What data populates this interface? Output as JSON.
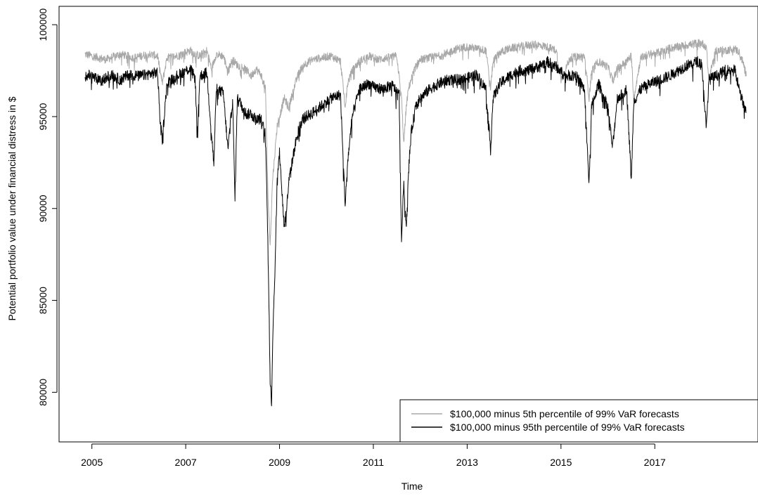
{
  "chart_data": {
    "type": "line",
    "title": "",
    "xlabel": "Time",
    "ylabel": "Potential portfolio value under financial distress in $",
    "xlim": [
      2004.3,
      2019.2
    ],
    "ylim": [
      77300,
      101000
    ],
    "x_ticks": [
      {
        "value": 2005,
        "label": "2005"
      },
      {
        "value": 2007,
        "label": "2007"
      },
      {
        "value": 2009,
        "label": "2009"
      },
      {
        "value": 2011,
        "label": "2011"
      },
      {
        "value": 2013,
        "label": "2013"
      },
      {
        "value": 2015,
        "label": "2015"
      },
      {
        "value": 2017,
        "label": "2017"
      }
    ],
    "y_ticks": [
      {
        "value": 80000,
        "label": "80000"
      },
      {
        "value": 85000,
        "label": "85000"
      },
      {
        "value": 90000,
        "label": "90000"
      },
      {
        "value": 95000,
        "label": "95000"
      },
      {
        "value": 100000,
        "label": "100000"
      }
    ],
    "grid": false,
    "legend_position": "bottom-right",
    "series": [
      {
        "name": "$100,000 minus 5th percentile of 99% VaR forecasts",
        "color": "#a8a8a8",
        "x": [
          2004.85,
          2005.0,
          2005.3,
          2005.6,
          2005.9,
          2006.2,
          2006.4,
          2006.5,
          2006.6,
          2006.8,
          2007.0,
          2007.1,
          2007.2,
          2007.3,
          2007.45,
          2007.55,
          2007.65,
          2007.8,
          2007.9,
          2008.0,
          2008.1,
          2008.2,
          2008.3,
          2008.4,
          2008.5,
          2008.6,
          2008.7,
          2008.75,
          2008.8,
          2008.85,
          2008.9,
          2008.95,
          2009.0,
          2009.1,
          2009.2,
          2009.3,
          2009.4,
          2009.5,
          2009.7,
          2009.9,
          2010.1,
          2010.3,
          2010.4,
          2010.45,
          2010.55,
          2010.7,
          2010.9,
          2011.1,
          2011.3,
          2011.5,
          2011.6,
          2011.65,
          2011.7,
          2011.75,
          2011.8,
          2011.9,
          2012.0,
          2012.2,
          2012.4,
          2012.6,
          2012.8,
          2013.0,
          2013.2,
          2013.4,
          2013.5,
          2013.55,
          2013.7,
          2013.9,
          2014.1,
          2014.3,
          2014.5,
          2014.7,
          2014.9,
          2015.0,
          2015.2,
          2015.5,
          2015.6,
          2015.65,
          2015.8,
          2016.0,
          2016.1,
          2016.2,
          2016.4,
          2016.5,
          2016.55,
          2016.7,
          2016.9,
          2017.1,
          2017.3,
          2017.5,
          2017.7,
          2017.9,
          2018.0,
          2018.1,
          2018.15,
          2018.3,
          2018.5,
          2018.7,
          2018.8,
          2018.9,
          2018.95
        ],
        "values": [
          98400,
          98300,
          98100,
          98400,
          98200,
          98400,
          98300,
          96800,
          98200,
          98300,
          98500,
          98600,
          98400,
          98300,
          98600,
          97600,
          98400,
          98300,
          97500,
          98100,
          97800,
          97700,
          97500,
          97200,
          97600,
          97300,
          96500,
          91000,
          88000,
          91500,
          93000,
          94500,
          95000,
          96000,
          95500,
          96500,
          97300,
          97800,
          98100,
          98200,
          98300,
          98000,
          95500,
          96800,
          97500,
          98000,
          98300,
          98100,
          98200,
          98300,
          96000,
          93500,
          95500,
          96500,
          97000,
          97700,
          98100,
          98200,
          98300,
          98500,
          98700,
          98800,
          98700,
          98600,
          96500,
          98000,
          98500,
          98700,
          98800,
          98900,
          98900,
          98800,
          98600,
          97000,
          98200,
          98300,
          96000,
          97500,
          98000,
          97700,
          97000,
          97600,
          98000,
          98300,
          96000,
          98200,
          98400,
          98500,
          98700,
          98800,
          98900,
          99000,
          99000,
          98800,
          97000,
          98600,
          98600,
          98700,
          98500,
          97800,
          97200
        ]
      },
      {
        "name": "$100,000 minus 95th percentile of 99% VaR forecasts",
        "color": "#000000",
        "x": [
          2004.85,
          2005.0,
          2005.2,
          2005.4,
          2005.6,
          2005.8,
          2006.0,
          2006.2,
          2006.4,
          2006.45,
          2006.5,
          2006.6,
          2006.8,
          2007.0,
          2007.1,
          2007.2,
          2007.25,
          2007.3,
          2007.45,
          2007.6,
          2007.65,
          2007.8,
          2007.9,
          2008.0,
          2008.05,
          2008.1,
          2008.2,
          2008.3,
          2008.4,
          2008.5,
          2008.6,
          2008.7,
          2008.75,
          2008.78,
          2008.8,
          2008.83,
          2008.86,
          2008.9,
          2008.95,
          2009.0,
          2009.1,
          2009.15,
          2009.2,
          2009.3,
          2009.4,
          2009.5,
          2009.7,
          2009.9,
          2010.1,
          2010.3,
          2010.35,
          2010.4,
          2010.45,
          2010.55,
          2010.7,
          2010.9,
          2011.0,
          2011.2,
          2011.4,
          2011.55,
          2011.6,
          2011.65,
          2011.7,
          2011.75,
          2011.8,
          2011.9,
          2012.0,
          2012.2,
          2012.4,
          2012.6,
          2012.8,
          2013.0,
          2013.2,
          2013.4,
          2013.5,
          2013.55,
          2013.7,
          2013.9,
          2014.1,
          2014.3,
          2014.5,
          2014.7,
          2014.9,
          2015.1,
          2015.3,
          2015.5,
          2015.6,
          2015.65,
          2015.8,
          2016.0,
          2016.1,
          2016.2,
          2016.3,
          2016.4,
          2016.5,
          2016.55,
          2016.7,
          2016.9,
          2017.1,
          2017.3,
          2017.5,
          2017.7,
          2017.9,
          2018.0,
          2018.1,
          2018.15,
          2018.3,
          2018.5,
          2018.7,
          2018.8,
          2018.9,
          2018.95
        ],
        "values": [
          97300,
          97200,
          96900,
          97300,
          97000,
          97300,
          97200,
          97300,
          97400,
          95000,
          93700,
          96800,
          97200,
          97500,
          97600,
          97100,
          93900,
          97200,
          97400,
          92400,
          96500,
          96300,
          93200,
          95900,
          90500,
          96000,
          95600,
          95100,
          95200,
          94800,
          94900,
          94000,
          88500,
          84000,
          80500,
          79500,
          83500,
          86500,
          91500,
          93000,
          89000,
          90000,
          91500,
          93000,
          94300,
          94900,
          95200,
          95600,
          96000,
          96200,
          93000,
          90200,
          92500,
          95000,
          96500,
          96800,
          96600,
          96500,
          96700,
          96200,
          88200,
          91500,
          88800,
          92000,
          94000,
          95500,
          96000,
          96500,
          96800,
          97000,
          97000,
          97100,
          97300,
          96500,
          93200,
          96000,
          96800,
          97200,
          97500,
          97500,
          97700,
          98000,
          97700,
          97200,
          97300,
          96500,
          91300,
          95500,
          96800,
          95500,
          93300,
          96000,
          96200,
          96500,
          91500,
          95800,
          96500,
          96800,
          97000,
          97200,
          97500,
          97800,
          98000,
          97900,
          94300,
          97000,
          97200,
          97500,
          97600,
          96500,
          95500,
          95200
        ]
      }
    ]
  }
}
